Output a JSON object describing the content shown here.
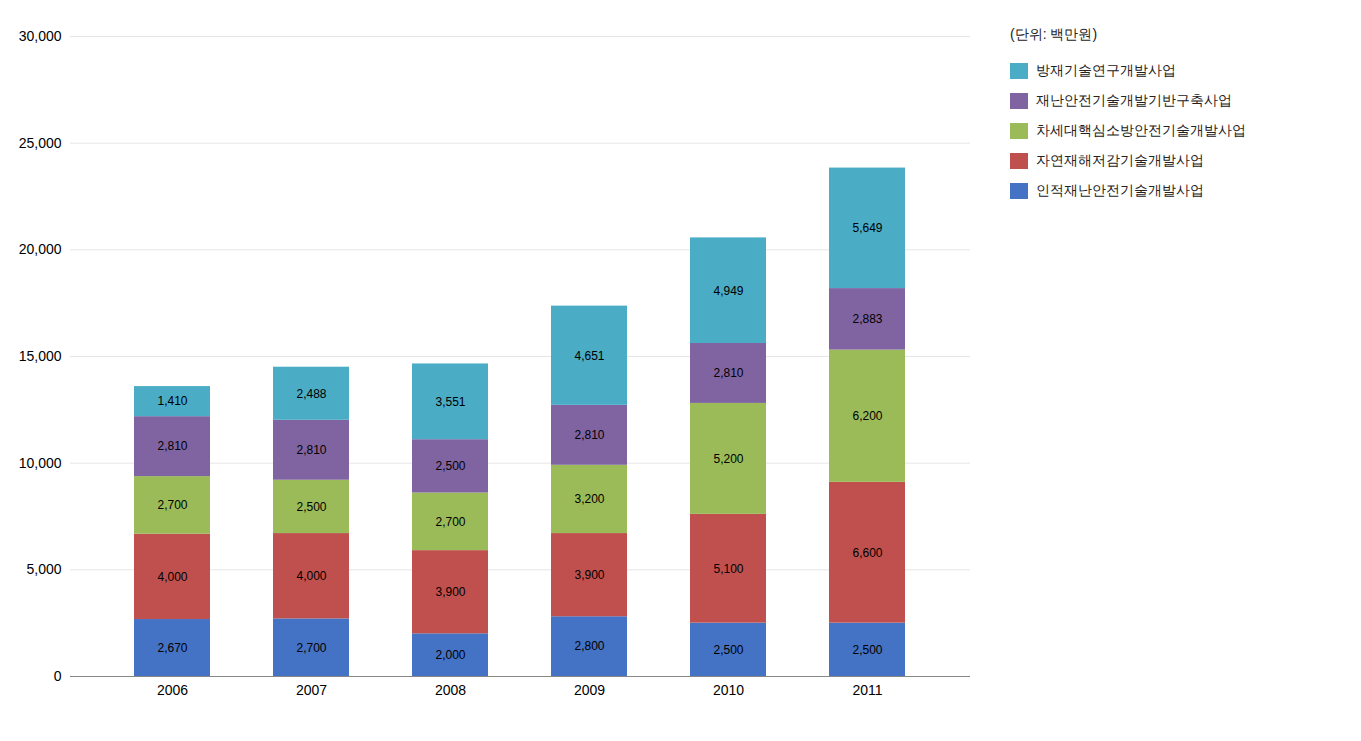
{
  "chart_data": {
    "type": "bar",
    "stacked": true,
    "categories": [
      "2006",
      "2007",
      "2008",
      "2009",
      "2010",
      "2011"
    ],
    "series": [
      {
        "name": "인적재난안전기술개발사업",
        "color": "#4472C4",
        "values": [
          2670,
          2700,
          2000,
          2800,
          2500,
          2500
        ],
        "value_labels": [
          "2,670",
          "2,700",
          "2,000",
          "2,800",
          "2,500",
          "2,500"
        ]
      },
      {
        "name": "자연재해저감기술개발사업",
        "color": "#C0504D",
        "values": [
          4000,
          4000,
          3900,
          3900,
          5100,
          6600
        ],
        "value_labels": [
          "4,000",
          "4,000",
          "3,900",
          "3,900",
          "5,100",
          "6,600"
        ]
      },
      {
        "name": "차세대핵심소방안전기술개발사업",
        "color": "#9BBB59",
        "values": [
          2700,
          2500,
          2700,
          3200,
          5200,
          6200
        ],
        "value_labels": [
          "2,700",
          "2,500",
          "2,700",
          "3,200",
          "5,200",
          "6,200"
        ]
      },
      {
        "name": "재난안전기술개발기반구축사업",
        "color": "#8064A2",
        "values": [
          2810,
          2810,
          2500,
          2810,
          2810,
          2883
        ],
        "value_labels": [
          "2,810",
          "2,810",
          "2,500",
          "2,810",
          "2,810",
          "2,883"
        ]
      },
      {
        "name": "방재기술연구개발사업",
        "color": "#4BACC6",
        "values": [
          1410,
          2488,
          3551,
          4651,
          4949,
          5649
        ],
        "value_labels": [
          "1,410",
          "2,488",
          "3,551",
          "4,651",
          "4,949",
          "5,649"
        ]
      }
    ],
    "annotations": [
      "(단위: 백만원)"
    ],
    "ylim": [
      0,
      30000
    ],
    "yticks": [
      0,
      {
        "value": 5000,
        "label": "5,000"
      },
      {
        "value": 10000,
        "label": "10,000"
      },
      {
        "value": 15000,
        "label": "15,000"
      },
      {
        "value": 20000,
        "label": "20,000"
      },
      {
        "value": 25000,
        "label": "25,000"
      },
      {
        "value": 30000,
        "label": "30,000"
      }
    ],
    "grid": true,
    "data_labels": true,
    "legend": "right"
  }
}
